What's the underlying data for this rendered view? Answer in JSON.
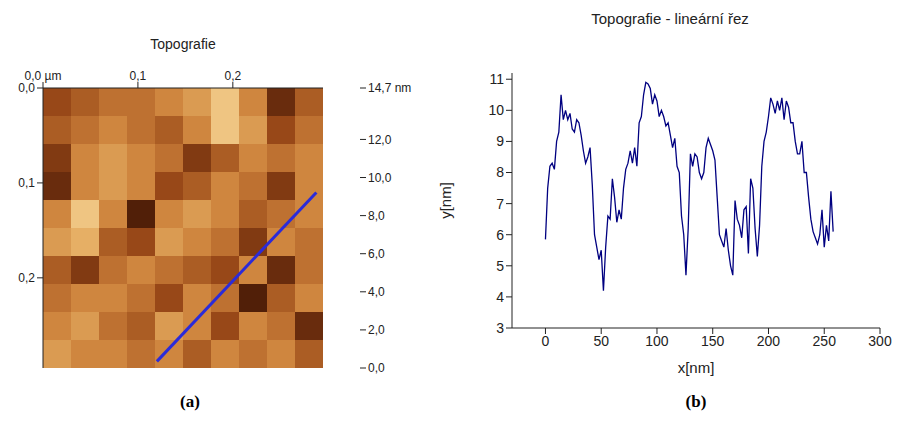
{
  "chart_data": [
    {
      "type": "heatmap",
      "title": "Topografie",
      "panel_label": "(a)",
      "xlim": [
        0,
        0.295
      ],
      "ylim": [
        0,
        0.295
      ],
      "xticks": [
        {
          "value": 0,
          "label": "0,0 µm"
        },
        {
          "value": 0.1,
          "label": "0,1"
        },
        {
          "value": 0.2,
          "label": "0,2"
        }
      ],
      "yticks": [
        {
          "value": 0,
          "label": "0,0"
        },
        {
          "value": 0.1,
          "label": "0,1"
        },
        {
          "value": 0.2,
          "label": "0,2"
        }
      ],
      "cells": [
        [
          6,
          7,
          8,
          8,
          9,
          10,
          12,
          9,
          4,
          7
        ],
        [
          7,
          8,
          9,
          8,
          7,
          9,
          12,
          10,
          6,
          8
        ],
        [
          5,
          9,
          10,
          9,
          8,
          5,
          7,
          9,
          8,
          9
        ],
        [
          4,
          9,
          10,
          9,
          6,
          7,
          9,
          8,
          5,
          9
        ],
        [
          9,
          12,
          9,
          3,
          9,
          10,
          9,
          7,
          8,
          9
        ],
        [
          10,
          11,
          7,
          6,
          10,
          9,
          8,
          5,
          9,
          8
        ],
        [
          7,
          5,
          8,
          9,
          8,
          7,
          6,
          9,
          4,
          8
        ],
        [
          8,
          9,
          9,
          8,
          6,
          9,
          8,
          3,
          7,
          9
        ],
        [
          9,
          10,
          8,
          7,
          10,
          9,
          6,
          9,
          8,
          4
        ],
        [
          10,
          9,
          9,
          8,
          9,
          7,
          9,
          8,
          9,
          7
        ]
      ],
      "colorbar": {
        "range": [
          0,
          14.7
        ],
        "ticks": [
          {
            "value": 0,
            "label": "0,0"
          },
          {
            "value": 2,
            "label": "2,0"
          },
          {
            "value": 4,
            "label": "4,0"
          },
          {
            "value": 6,
            "label": "6,0"
          },
          {
            "value": 8,
            "label": "8,0"
          },
          {
            "value": 10,
            "label": "10,0"
          },
          {
            "value": 12,
            "label": "12,0"
          },
          {
            "value": 14.7,
            "label": "14,7 nm"
          }
        ]
      },
      "profile_line": {
        "x": [
          0.12,
          0.288
        ],
        "y": [
          0.288,
          0.11
        ],
        "color": "#2b2bd9"
      }
    },
    {
      "type": "line",
      "title": "Topografie - lineární řez",
      "panel_label": "(b)",
      "x_label": "x[nm]",
      "y_label": "y[nm]",
      "color": "#000080",
      "xlim": [
        -30,
        300
      ],
      "ylim": [
        3,
        11.2
      ],
      "xticks": [
        0,
        50,
        100,
        150,
        200,
        250,
        300
      ],
      "yticks": [
        3,
        4,
        5,
        6,
        7,
        8,
        9,
        10,
        11
      ],
      "x": [
        0,
        2,
        4,
        6,
        8,
        10,
        12,
        14,
        16,
        18,
        20,
        22,
        24,
        26,
        28,
        30,
        32,
        34,
        36,
        38,
        40,
        42,
        44,
        46,
        48,
        50,
        52,
        54,
        56,
        58,
        60,
        62,
        64,
        66,
        68,
        70,
        72,
        74,
        76,
        78,
        80,
        82,
        84,
        86,
        88,
        90,
        92,
        94,
        96,
        98,
        100,
        102,
        104,
        106,
        108,
        110,
        112,
        114,
        116,
        118,
        120,
        122,
        124,
        126,
        128,
        130,
        132,
        134,
        136,
        138,
        140,
        142,
        144,
        146,
        148,
        150,
        152,
        154,
        156,
        158,
        160,
        162,
        164,
        166,
        168,
        170,
        172,
        174,
        176,
        178,
        180,
        182,
        184,
        186,
        188,
        190,
        192,
        194,
        196,
        198,
        200,
        202,
        204,
        206,
        208,
        210,
        212,
        214,
        216,
        218,
        220,
        222,
        224,
        226,
        228,
        230,
        232,
        234,
        236,
        238,
        240,
        242,
        244,
        246,
        248,
        250,
        252,
        254,
        256,
        258
      ],
      "values": [
        5.85,
        7.5,
        8.2,
        8.3,
        8.1,
        9.0,
        9.3,
        10.5,
        9.7,
        10.0,
        9.7,
        9.9,
        9.4,
        9.3,
        9.7,
        9.6,
        9.2,
        8.7,
        8.3,
        8.5,
        8.8,
        7.6,
        6.0,
        5.6,
        5.2,
        5.5,
        4.2,
        5.6,
        6.6,
        6.5,
        7.8,
        7.2,
        6.4,
        6.8,
        6.5,
        7.5,
        8.1,
        8.3,
        8.7,
        8.3,
        8.8,
        8.2,
        9.6,
        9.8,
        10.5,
        10.9,
        10.85,
        10.7,
        10.2,
        10.5,
        10.3,
        9.8,
        10.0,
        9.8,
        9.5,
        9.6,
        9.2,
        8.8,
        9.1,
        8.2,
        8.0,
        6.6,
        6.0,
        4.7,
        6.2,
        8.6,
        8.2,
        8.6,
        8.5,
        8.0,
        7.8,
        8.0,
        8.8,
        9.1,
        8.9,
        8.7,
        8.4,
        7.2,
        6.0,
        5.8,
        5.6,
        6.2,
        5.5,
        5.0,
        4.7,
        7.1,
        6.5,
        6.3,
        5.9,
        6.8,
        6.9,
        5.4,
        7.8,
        7.5,
        6.2,
        5.3,
        6.3,
        8.2,
        9.0,
        9.3,
        9.8,
        10.4,
        10.2,
        9.9,
        10.3,
        10.0,
        10.4,
        9.7,
        10.3,
        10.1,
        9.6,
        9.6,
        9.0,
        8.6,
        8.6,
        9.0,
        8.0,
        8.0,
        7.2,
        6.5,
        6.1,
        5.9,
        5.7,
        6.0,
        6.8,
        5.6,
        6.3,
        5.8,
        7.4,
        6.1
      ]
    }
  ]
}
